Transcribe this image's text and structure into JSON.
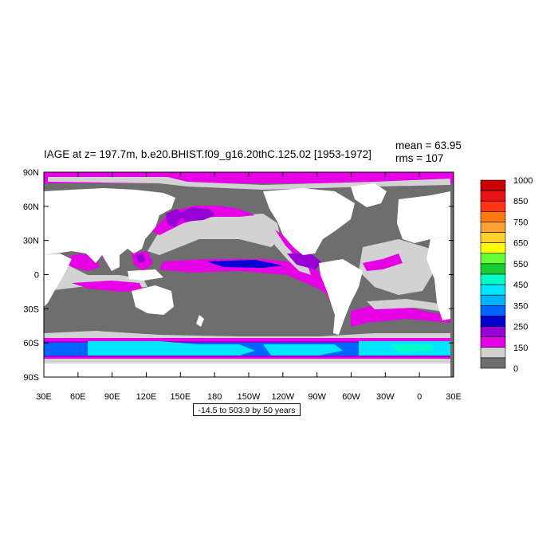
{
  "title": "IAGE at z= 197.7m, b.e20.BHIST.f09_g16.20thC.125.02 [1953-1972]",
  "stats": {
    "mean": "mean = 63.95",
    "rms": "rms = 107"
  },
  "range_note": "-14.5 to 503.9 by 50 years",
  "x_ticks": [
    "30E",
    "60E",
    "90E",
    "120E",
    "150E",
    "180",
    "150W",
    "120W",
    "90W",
    "60W",
    "30W",
    "0",
    "30E"
  ],
  "y_ticks": [
    "90N",
    "60N",
    "30N",
    "0",
    "30S",
    "60S",
    "90S"
  ],
  "colorbar": {
    "labels": [
      "1000",
      "850",
      "750",
      "650",
      "550",
      "450",
      "350",
      "250",
      "150",
      "0"
    ],
    "colors": [
      "#c80000",
      "#e61414",
      "#ff3214",
      "#ff7814",
      "#ffa032",
      "#ffd232",
      "#ffff00",
      "#66ff33",
      "#19cc33",
      "#00ffc8",
      "#00e6ff",
      "#00b4ff",
      "#0064ff",
      "#0000d2",
      "#9600d2",
      "#e600e6",
      "#d2d2d2",
      "#6e6e6e"
    ]
  },
  "map_colors": {
    "land": "#ffffff",
    "ocean_young": "#6e6e6e",
    "ocean_grey": "#d2d2d2",
    "magenta": "#e600e6",
    "purple": "#9600d2",
    "blue": "#0064ff",
    "cyan": "#00e6ff",
    "aqua": "#00ffc8"
  }
}
